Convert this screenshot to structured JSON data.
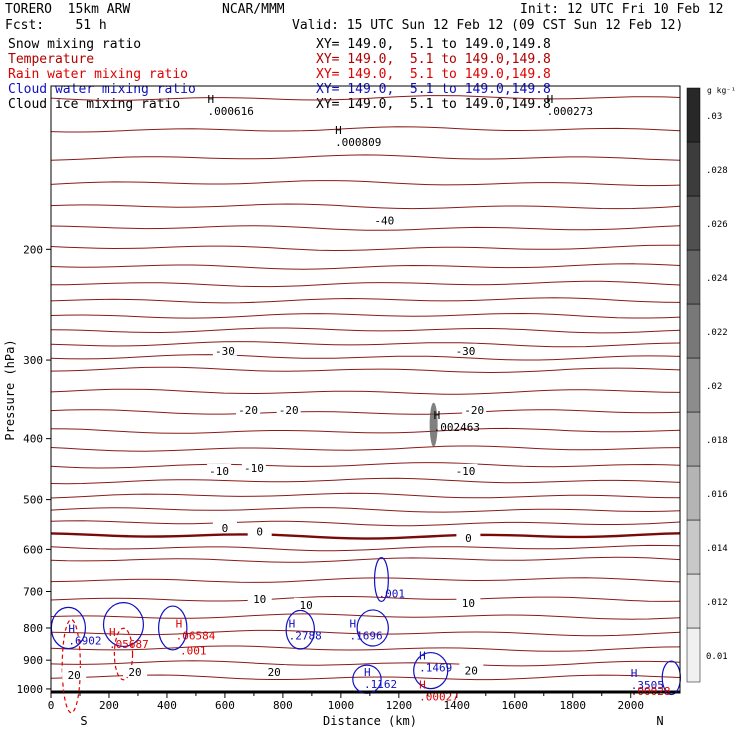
{
  "header": {
    "model": "TORERO  15km ARW",
    "org": "NCAR/MMM",
    "init": "Init: 12 UTC Fri 10 Feb 12",
    "fcst": "Fcst:    51 h",
    "valid": "Valid: 15 UTC Sun 12 Feb 12 (09 CST Sun 12 Feb 12)",
    "fields": [
      {
        "name": "Snow mixing ratio",
        "color": "#000000",
        "xy": ""
      },
      {
        "name": "Temperature",
        "color": "#b00000",
        "xy": "XY= 149.0,  5.1 to 149.0,149.8"
      },
      {
        "name": "Rain water mixing ratio",
        "color": "#e00000",
        "xy": "XY= 149.0,  5.1 to 149.0,149.8"
      },
      {
        "name": "Cloud water mixing ratio",
        "color": "#1010c0",
        "xy": "XY= 149.0,  5.1 to 149.0,149.8"
      },
      {
        "name": "Cloud ice mixing ratio",
        "color": "#000000",
        "xy": "XY= 149.0,  5.1 to 149.0,149.8"
      }
    ],
    "xy_top": "XY= 149.0,  5.1 to 149.0,149.8"
  },
  "chart_data": {
    "type": "cross-section",
    "xlabel": "Distance (km)",
    "ylabel": "Pressure (hPa)",
    "x_ticks": [
      0,
      200,
      400,
      600,
      800,
      1000,
      1200,
      1400,
      1600,
      1800,
      2000
    ],
    "y_ticks": [
      200,
      300,
      400,
      500,
      600,
      700,
      800,
      900,
      1000
    ],
    "xlim": [
      0,
      2170
    ],
    "ylim": [
      1015,
      110
    ],
    "y_scale": "log",
    "end_labels": {
      "left": "S",
      "right": "N"
    },
    "colorbar": {
      "unit": "g kg⁻¹",
      "ticks": [
        "0.01",
        ".012",
        ".014",
        ".016",
        ".018",
        ".02",
        ".022",
        ".024",
        ".026",
        ".028",
        ".03"
      ]
    },
    "temperature_labels": [
      {
        "text": "-40",
        "x": 1150,
        "p": 180
      },
      {
        "text": "-30",
        "x": 600,
        "p": 290
      },
      {
        "text": "-30",
        "x": 1430,
        "p": 290
      },
      {
        "text": "-20",
        "x": 680,
        "p": 360
      },
      {
        "text": "-20",
        "x": 820,
        "p": 360
      },
      {
        "text": "-20",
        "x": 1460,
        "p": 360
      },
      {
        "text": "-10",
        "x": 580,
        "p": 450
      },
      {
        "text": "-10",
        "x": 700,
        "p": 445
      },
      {
        "text": "-10",
        "x": 1430,
        "p": 450
      },
      {
        "text": "0",
        "x": 600,
        "p": 555
      },
      {
        "text": "0",
        "x": 720,
        "p": 562
      },
      {
        "text": "0",
        "x": 1440,
        "p": 575
      },
      {
        "text": "10",
        "x": 720,
        "p": 720
      },
      {
        "text": "10",
        "x": 880,
        "p": 735
      },
      {
        "text": "10",
        "x": 1440,
        "p": 730
      },
      {
        "text": "20",
        "x": 80,
        "p": 950
      },
      {
        "text": "20",
        "x": 290,
        "p": 940
      },
      {
        "text": "20",
        "x": 770,
        "p": 940
      },
      {
        "text": "20",
        "x": 1450,
        "p": 935
      }
    ],
    "extrema_labels": [
      {
        "mark": "H",
        "value": ".000616",
        "x": 540,
        "p": 118,
        "color": "#000000"
      },
      {
        "mark": "H",
        "value": ".000809",
        "x": 980,
        "p": 132,
        "color": "#000000"
      },
      {
        "mark": "H",
        "value": ".000273",
        "x": 1710,
        "p": 118,
        "color": "#000000"
      },
      {
        "mark": "H",
        "value": ".002463",
        "x": 1320,
        "p": 375,
        "color": "#000000"
      },
      {
        "mark": "",
        "value": ".001",
        "x": 1130,
        "p": 690,
        "color": "#1010c0"
      },
      {
        "mark": "H",
        "value": ".6902",
        "x": 60,
        "p": 820,
        "color": "#1010c0"
      },
      {
        "mark": "H",
        "value": ".05687",
        "x": 200,
        "p": 830,
        "color": "#e00000"
      },
      {
        "mark": "H",
        "value": ".06584",
        "x": 430,
        "p": 805,
        "color": "#e00000"
      },
      {
        "mark": "",
        "value": ".001",
        "x": 445,
        "p": 850,
        "color": "#e00000"
      },
      {
        "mark": "H",
        "value": ".2788",
        "x": 820,
        "p": 805,
        "color": "#1010c0"
      },
      {
        "mark": "H",
        "value": ".1696",
        "x": 1030,
        "p": 805,
        "color": "#1010c0"
      },
      {
        "mark": "H",
        "value": ".1469",
        "x": 1270,
        "p": 905,
        "color": "#1010c0"
      },
      {
        "mark": "H",
        "value": ".1162",
        "x": 1080,
        "p": 960,
        "color": "#1010c0"
      },
      {
        "mark": "H",
        "value": ".00027",
        "x": 1270,
        "p": 1005,
        "color": "#e00000"
      },
      {
        "mark": "H",
        "value": ".3505",
        "x": 2000,
        "p": 965,
        "color": "#1010c0"
      },
      {
        "mark": "",
        "value": ".00028",
        "x": 2000,
        "p": 985,
        "color": "#e00000"
      }
    ]
  }
}
